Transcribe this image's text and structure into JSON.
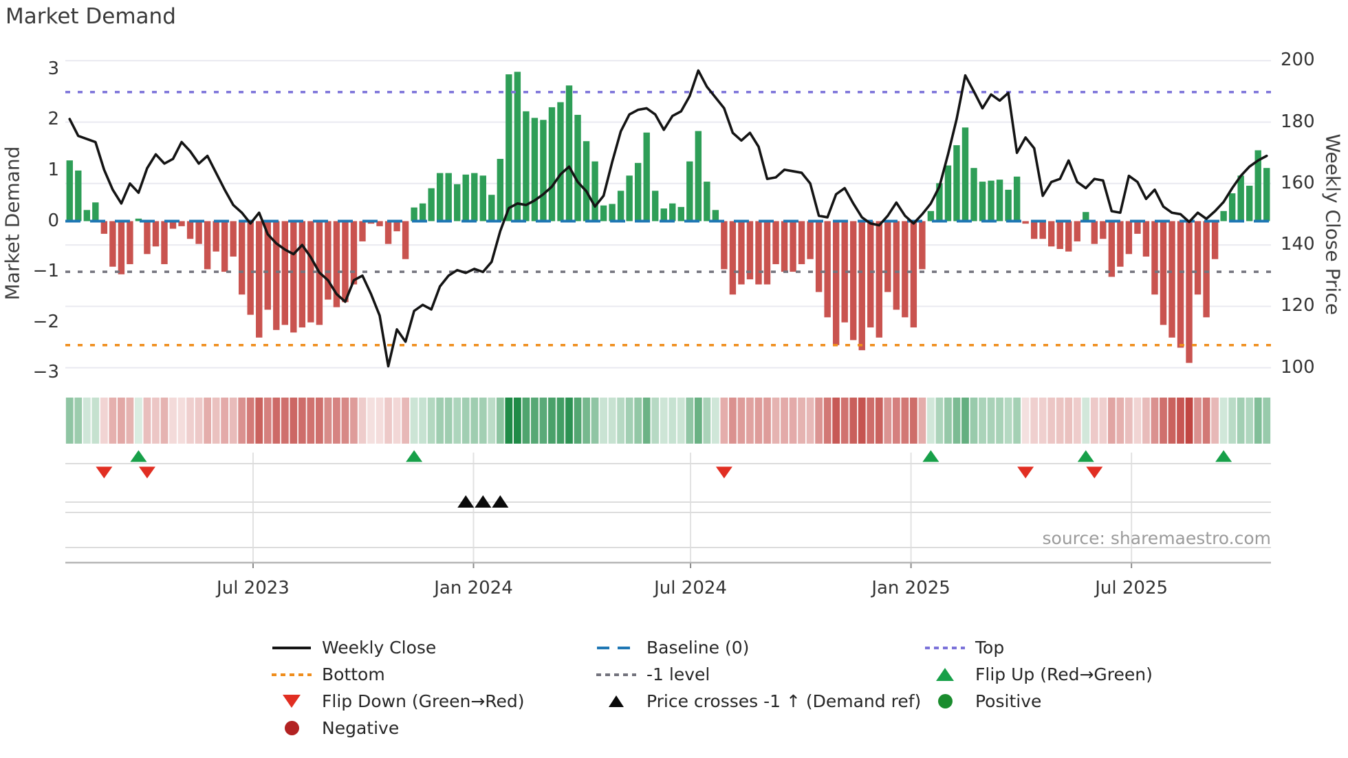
{
  "title": "Market Demand",
  "source": "source: sharemaestro.com",
  "axes": {
    "left_label": "Market Demand",
    "right_label": "Weekly Close Price",
    "left_ticks": [
      3,
      2,
      1,
      0,
      -1,
      -2,
      -3
    ],
    "right_ticks": [
      200,
      180,
      160,
      140,
      120,
      100
    ],
    "x_ticks": [
      {
        "label": "Jul 2023",
        "week": 21.3
      },
      {
        "label": "Jan 2024",
        "week": 46.9
      },
      {
        "label": "Jul 2024",
        "week": 72.1
      },
      {
        "label": "Jan 2025",
        "week": 97.7
      },
      {
        "label": "Jul 2025",
        "week": 123.3
      }
    ]
  },
  "chart_data": {
    "type": "bar",
    "series": [
      {
        "name": "Market Demand",
        "type": "bar",
        "axis": "left",
        "values": [
          1.2,
          1.0,
          0.22,
          0.37,
          -0.25,
          -0.9,
          -1.05,
          -0.85,
          0.05,
          -0.65,
          -0.5,
          -0.85,
          -0.15,
          -0.1,
          -0.35,
          -0.45,
          -0.95,
          -0.6,
          -1.0,
          -0.7,
          -1.45,
          -1.85,
          -2.3,
          -1.75,
          -2.15,
          -2.05,
          -2.2,
          -2.1,
          -2.0,
          -2.05,
          -1.55,
          -1.7,
          -1.6,
          -1.25,
          -0.4,
          -0.05,
          -0.1,
          -0.45,
          -0.2,
          -0.75,
          0.27,
          0.35,
          0.65,
          0.95,
          0.95,
          0.73,
          0.92,
          0.95,
          0.9,
          0.52,
          1.23,
          2.9,
          2.95,
          2.17,
          2.04,
          2.0,
          2.25,
          2.35,
          2.68,
          2.1,
          1.58,
          1.18,
          0.31,
          0.34,
          0.6,
          0.9,
          1.15,
          1.75,
          0.6,
          0.25,
          0.35,
          0.28,
          1.18,
          1.78,
          0.78,
          0.22,
          -0.95,
          -1.45,
          -1.25,
          -1.15,
          -1.25,
          -1.25,
          -0.85,
          -1.0,
          -1.0,
          -0.85,
          -0.75,
          -1.4,
          -1.9,
          -2.45,
          -2.0,
          -2.35,
          -2.55,
          -2.1,
          -2.3,
          -1.4,
          -1.75,
          -1.9,
          -2.1,
          -0.95,
          0.2,
          0.75,
          1.1,
          1.5,
          1.85,
          1.05,
          0.78,
          0.8,
          0.82,
          0.62,
          0.88,
          -0.05,
          -0.35,
          -0.35,
          -0.5,
          -0.55,
          -0.6,
          -0.4,
          0.18,
          -0.45,
          -0.35,
          -1.1,
          -0.9,
          -0.65,
          -0.25,
          -0.7,
          -1.45,
          -2.05,
          -2.3,
          -2.5,
          -2.8,
          -1.45,
          -1.9,
          -0.75,
          0.2,
          0.55,
          0.9,
          0.7,
          1.4,
          1.05
        ]
      },
      {
        "name": "Weekly Close",
        "type": "line",
        "axis": "right",
        "values": [
          181,
          175.5,
          174.5,
          173.5,
          164.5,
          158,
          153.5,
          160,
          157,
          165,
          169.5,
          166.5,
          168,
          173.5,
          170.5,
          166.5,
          169,
          163.5,
          158,
          153,
          150.5,
          147,
          150.5,
          143.5,
          140.5,
          138.5,
          137,
          140,
          136,
          131,
          128.5,
          124,
          121.5,
          128.5,
          130,
          124,
          117,
          100.5,
          112.5,
          108.5,
          118.5,
          120.5,
          119,
          126.5,
          130,
          131.8,
          130.9,
          132.2,
          131.2,
          134.5,
          144.5,
          152,
          153.5,
          153,
          154.5,
          156.5,
          159,
          163,
          165.5,
          160.5,
          157.5,
          152.5,
          156,
          167,
          177,
          182.5,
          184,
          184.5,
          182.5,
          177.5,
          182,
          183.5,
          188.5,
          196.8,
          191.5,
          188,
          184.5,
          176.5,
          174,
          176.5,
          172,
          161.5,
          162,
          164.5,
          164,
          163.5,
          160,
          149.5,
          149,
          156.5,
          158.5,
          153.5,
          149,
          147,
          146.4,
          149.5,
          153.8,
          149.5,
          147,
          150,
          153.5,
          159,
          169.5,
          181,
          195.2,
          190,
          184.5,
          189,
          187,
          189.5,
          170,
          175,
          171.5,
          156,
          160.5,
          161.5,
          167.5,
          160.5,
          158.5,
          161.5,
          161,
          151,
          150.5,
          162.5,
          160.5,
          155,
          158,
          152.5,
          150.5,
          150,
          147.5,
          150.5,
          148.5,
          151,
          154,
          158.5,
          162.5,
          165.5,
          167.5,
          169
        ]
      }
    ],
    "heatmap": "signal strip: one cell per week, green shade for positive demand, red shade for negative, intensity proportional to |demand|",
    "reference_lines": {
      "baseline": 0,
      "top": 2.55,
      "minus1": -1,
      "bottom": -2.45
    },
    "markers": {
      "flip_up_weeks": [
        8,
        40,
        100,
        118,
        134
      ],
      "flip_down_weeks": [
        4,
        9,
        76,
        111,
        119
      ],
      "price_cross_minus1_weeks": [
        46,
        48,
        50
      ]
    },
    "n_weeks": 140,
    "ylim_demand": [
      -3.2,
      3.2
    ],
    "ylim_price": [
      95,
      200.5
    ],
    "grid": "horizontal gridlines at right-axis ticks; vertical month gridlines in marker panel only",
    "legend_position": "bottom, 3 columns"
  },
  "legend": {
    "items": [
      {
        "swatch": "line-black",
        "label": "Weekly Close"
      },
      {
        "swatch": "dash-blue",
        "label": "Baseline (0)"
      },
      {
        "swatch": "dot-purple",
        "label": "Top"
      },
      {
        "swatch": "dot-orange",
        "label": "Bottom"
      },
      {
        "swatch": "dot-gray",
        "label": "-1 level"
      },
      {
        "swatch": "tri-up-green",
        "label": "Flip Up (Red→Green)"
      },
      {
        "swatch": "tri-down-red",
        "label": "Flip Down (Green→Red)"
      },
      {
        "swatch": "tri-up-black",
        "label": "Price crosses -1 ↑ (Demand ref)"
      },
      {
        "swatch": "circle-green",
        "label": "Positive"
      },
      {
        "swatch": "circle-darkred",
        "label": "Negative"
      }
    ]
  },
  "colors": {
    "bar_positive": "#2e9e57",
    "bar_negative": "#c9534f",
    "price_line": "#141414",
    "baseline": "#1f77b4",
    "top_line": "#7b72d9",
    "minus1_line": "#73737d",
    "bottom_line": "#ef8d1c",
    "flip_up_marker": "#17a049",
    "flip_down_marker": "#e12e22",
    "cross_marker": "#0a0a0a",
    "positive_dot": "#1a8c2e",
    "negative_dot": "#b22222",
    "heat_green": "#1f8b47",
    "heat_red": "#bf403c",
    "grid": "#e9e9f0",
    "panel_grid": "#e2e2e2",
    "spine": "#b5b5b5"
  }
}
